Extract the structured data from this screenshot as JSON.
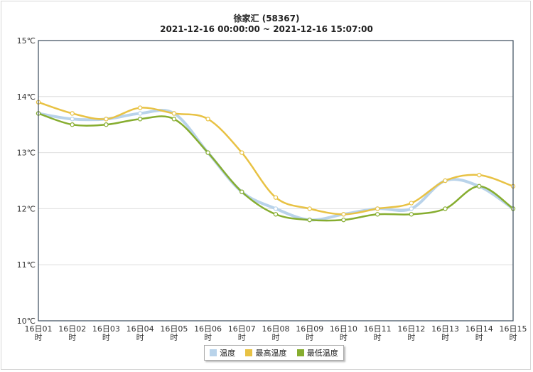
{
  "chart_data": {
    "type": "line",
    "title": "徐家汇 (58367)",
    "subtitle": "2021-12-16 00:00:00 ~ 2021-12-16 15:07:00",
    "categories": [
      "16日01时",
      "16日02时",
      "16日03时",
      "16日04时",
      "16日05时",
      "16日06时",
      "16日07时",
      "16日08时",
      "16日09时",
      "16日10时",
      "16日11时",
      "16日12时",
      "16日13时",
      "16日14时",
      "16日15时"
    ],
    "y_ticks": [
      "10℃",
      "11℃",
      "12℃",
      "13℃",
      "14℃",
      "15℃"
    ],
    "ylim": [
      10,
      15
    ],
    "grid": true,
    "legend_position": "bottom",
    "series": [
      {
        "name": "温度",
        "color": "#b9d3ea",
        "values": [
          13.7,
          13.6,
          13.6,
          13.7,
          13.7,
          13.0,
          12.3,
          12.0,
          11.8,
          11.9,
          12.0,
          12.0,
          12.5,
          12.4,
          12.0
        ]
      },
      {
        "name": "最高温度",
        "color": "#e8c244",
        "values": [
          13.9,
          13.7,
          13.6,
          13.8,
          13.7,
          13.6,
          13.0,
          12.2,
          12.0,
          11.9,
          12.0,
          12.1,
          12.5,
          12.6,
          12.4
        ]
      },
      {
        "name": "最低温度",
        "color": "#86ad2f",
        "values": [
          13.7,
          13.5,
          13.5,
          13.6,
          13.6,
          13.0,
          12.3,
          11.9,
          11.8,
          11.8,
          11.9,
          11.9,
          12.0,
          12.4,
          12.0
        ]
      }
    ]
  }
}
